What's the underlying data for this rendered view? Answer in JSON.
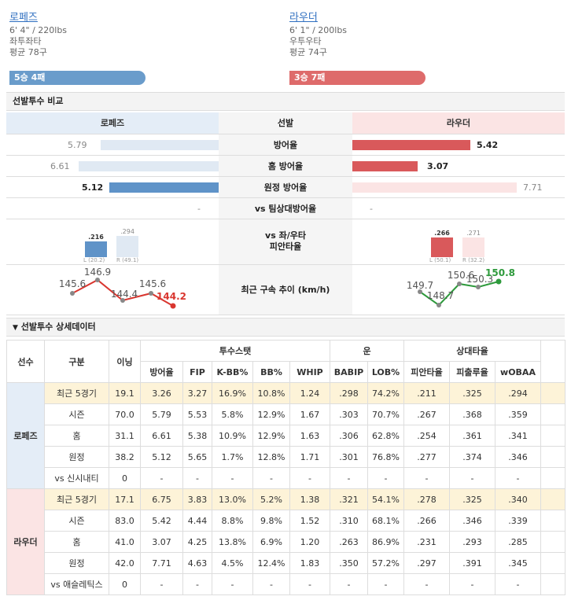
{
  "left": {
    "name": "로페즈",
    "size": "6' 4\" / 220lbs",
    "hand": "좌투좌타",
    "pitches": "평균 78구",
    "record": "5승 4패",
    "color": "#6a9ccb"
  },
  "right": {
    "name": "라우더",
    "size": "6' 1\" / 200lbs",
    "hand": "우투우타",
    "pitches": "평균 74구",
    "record": "3승 7패",
    "color": "#de6b6b"
  },
  "section1": "선발투수 비교",
  "section2": "선발투수 상세데이터",
  "compare": {
    "head": [
      "로페즈",
      "선발",
      "라우더"
    ],
    "rows": [
      {
        "label": "방어율",
        "l": "5.79",
        "r": "5.42"
      },
      {
        "label": "홈 방어율",
        "l": "6.61",
        "r": "3.07"
      },
      {
        "label": "원정 방어율",
        "l": "5.12",
        "r": "7.71"
      },
      {
        "label": "vs 팀상대방어율",
        "l": "-",
        "r": "-"
      }
    ],
    "split_label": "vs 좌/우타\n피안타율",
    "left_split": {
      "L": ".216",
      "R": ".294",
      "Lsub": "L (20.2)",
      "Rsub": "R (49.1)"
    },
    "right_split": {
      "L": ".266",
      "R": ".271",
      "Lsub": "L (50.1)",
      "Rsub": "R (32.2)"
    },
    "velo_label": "최근 구속 추이 (km/h)",
    "left_velo": [
      "145.6",
      "146.9",
      "144.4",
      "145.6",
      "144.2"
    ],
    "right_velo": [
      "149.7",
      "148.7",
      "150.6",
      "150.3",
      "150.8"
    ]
  },
  "detail": {
    "h1": [
      "선수",
      "구분",
      "이닝",
      "투수스탯",
      "운",
      "상대타율"
    ],
    "h2": [
      "방어율",
      "FIP",
      "K-BB%",
      "BB%",
      "WHIP",
      "BABIP",
      "LOB%",
      "피안타율",
      "피출루율",
      "wOBAA"
    ],
    "players": [
      {
        "name": "로페즈",
        "rows": [
          [
            "최근 5경기",
            "19.1",
            "3.26",
            "3.27",
            "16.9%",
            "10.8%",
            "1.24",
            ".298",
            "74.2%",
            ".211",
            ".325",
            ".294"
          ],
          [
            "시즌",
            "70.0",
            "5.79",
            "5.53",
            "5.8%",
            "12.9%",
            "1.67",
            ".303",
            "70.7%",
            ".267",
            ".368",
            ".359"
          ],
          [
            "홈",
            "31.1",
            "6.61",
            "5.38",
            "10.9%",
            "12.9%",
            "1.63",
            ".306",
            "62.8%",
            ".254",
            ".361",
            ".341"
          ],
          [
            "원정",
            "38.2",
            "5.12",
            "5.65",
            "1.7%",
            "12.8%",
            "1.71",
            ".301",
            "76.8%",
            ".277",
            ".374",
            ".346"
          ],
          [
            "vs 신시내티",
            "0",
            "-",
            "-",
            "-",
            "-",
            "-",
            "-",
            "-",
            "-",
            "-",
            "-"
          ]
        ]
      },
      {
        "name": "라우더",
        "rows": [
          [
            "최근 5경기",
            "17.1",
            "6.75",
            "3.83",
            "13.0%",
            "5.2%",
            "1.38",
            ".321",
            "54.1%",
            ".278",
            ".325",
            ".340"
          ],
          [
            "시즌",
            "83.0",
            "5.42",
            "4.44",
            "8.8%",
            "9.8%",
            "1.52",
            ".310",
            "68.1%",
            ".266",
            ".346",
            ".339"
          ],
          [
            "홈",
            "41.0",
            "3.07",
            "4.25",
            "13.8%",
            "6.9%",
            "1.20",
            ".263",
            "86.9%",
            ".231",
            ".293",
            ".285"
          ],
          [
            "원정",
            "42.0",
            "7.71",
            "4.63",
            "4.5%",
            "12.4%",
            "1.83",
            ".350",
            "57.2%",
            ".297",
            ".391",
            ".345"
          ],
          [
            "vs 애슬레틱스",
            "0",
            "-",
            "-",
            "-",
            "-",
            "-",
            "-",
            "-",
            "-",
            "-",
            "-"
          ]
        ]
      }
    ]
  }
}
